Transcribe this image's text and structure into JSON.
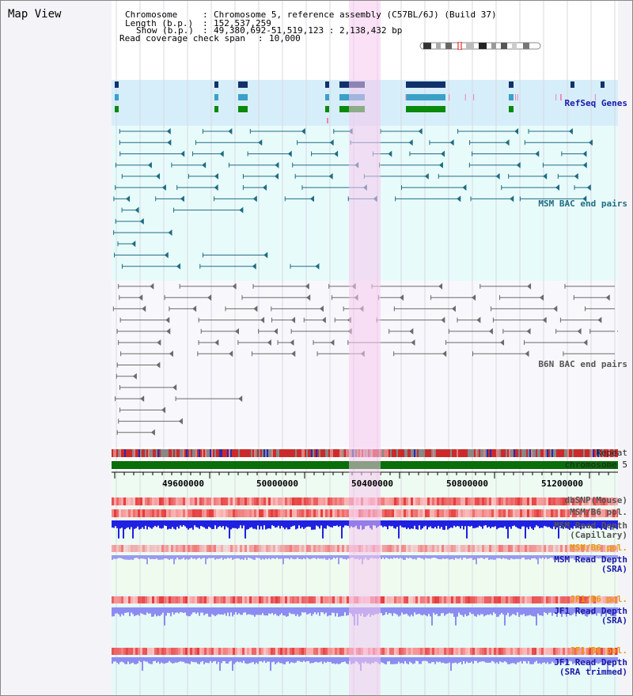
{
  "page_title": "Map View",
  "header": {
    "chromosome_label": "Chromosome",
    "chromosome_value": "Chromosome 5, reference assembly (C57BL/6J) (Build 37)",
    "length_label": "Length (b.p.)",
    "length_value": "152,537,259",
    "show_label": "Show (b.p.)",
    "show_value": "49,380,692-51,519,123 : 2,138,432 bp",
    "coverage_label": "Read coverage check span",
    "coverage_value": "10,000",
    "sep": ":"
  },
  "tracks": {
    "refseq": "RefSeq Genes",
    "msm_bac": "MSM BAC end pairs",
    "b6n_bac": "B6N BAC end pairs",
    "repeat": "Repeat",
    "chromosome": "chromosome 5",
    "dbsnp": "dbSNP(Mouse)",
    "msm_b6_pol_1": "MSM/B6 pol.",
    "msm_read_depth_cap_1": "MSM Read Depth",
    "msm_read_depth_cap_2": "(Capillary)",
    "msm_b6_pol_2": "MSM/B6 pol.",
    "msm_read_depth_sra_1": "MSM Read Depth",
    "msm_read_depth_sra_2": "(SRA)",
    "jf1_b6_pol_1": "JF1/B6 pol.",
    "jf1_read_depth_1": "JF1 Read Depth",
    "jf1_read_depth_2": "(SRA)",
    "jf1_b6_pol_2": "JF1/B6 pol.",
    "jf1_read_depth_trim_1": "JF1 Read Depth",
    "jf1_read_depth_trim_2": "(SRA trimmed)"
  },
  "axis": {
    "ticks": [
      "49600000",
      "50000000",
      "50400000",
      "50800000",
      "51200000"
    ]
  },
  "colors": {
    "refseq_bg": "#d6eefa",
    "bac_bg": "#e8fbfb",
    "selection": "#f6c8ef",
    "chromosome_bar": "#0a6e0a",
    "depth_dark": "#2020e0",
    "depth_light": "#8c8cf0",
    "snp_red": "#e84040"
  }
}
